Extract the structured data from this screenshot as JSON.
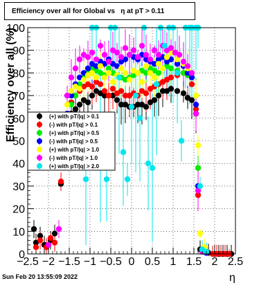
{
  "chart_data": {
    "type": "scatter",
    "title": "Efficiency over all for Global vs   η at pT > 0.11",
    "xlabel": "η",
    "ylabel": "Efficiency over all (%)",
    "xlim": [
      -2.5,
      2.5
    ],
    "ylim": [
      0,
      100
    ],
    "x_ticks": [
      -2.5,
      -2,
      -1.5,
      -1,
      -0.5,
      0,
      0.5,
      1,
      1.5,
      2,
      2.5
    ],
    "x_tick_labels": [
      "−2.5",
      "−2",
      "−1.5",
      "−1",
      "−0.5",
      "0",
      "0.5",
      "1",
      "1.5",
      "2",
      "2.5"
    ],
    "y_ticks": [
      0,
      10,
      20,
      30,
      40,
      50,
      60,
      70,
      80,
      90,
      100
    ],
    "y_tick_labels": [
      "0",
      "10",
      "20",
      "30",
      "40",
      "50",
      "60",
      "70",
      "80",
      "90",
      "100"
    ],
    "grid": true,
    "legend_placement": "middle-left",
    "series": [
      {
        "name": "(+) with pT/|q| > 0.1",
        "color": "#000000",
        "points": [
          [
            -2.35,
            11
          ],
          [
            -2.3,
            5
          ],
          [
            -2.2,
            8
          ],
          [
            -2.1,
            4
          ],
          [
            -1.95,
            6
          ],
          [
            -1.85,
            9
          ],
          [
            -1.7,
            31
          ],
          [
            -1.55,
            58
          ],
          [
            -1.45,
            62
          ],
          [
            -1.35,
            64
          ],
          [
            -1.25,
            66
          ],
          [
            -1.15,
            68
          ],
          [
            -1.05,
            67
          ],
          [
            -0.95,
            70
          ],
          [
            -0.85,
            72
          ],
          [
            -0.75,
            71
          ],
          [
            -0.65,
            70
          ],
          [
            -0.55,
            70
          ],
          [
            -0.45,
            70
          ],
          [
            -0.35,
            68
          ],
          [
            -0.25,
            66
          ],
          [
            -0.15,
            66
          ],
          [
            -0.05,
            65
          ],
          [
            0.05,
            65
          ],
          [
            0.15,
            66
          ],
          [
            0.25,
            66
          ],
          [
            0.35,
            65
          ],
          [
            0.45,
            67
          ],
          [
            0.55,
            68
          ],
          [
            0.65,
            70
          ],
          [
            0.75,
            72
          ],
          [
            0.85,
            72
          ],
          [
            0.95,
            73
          ],
          [
            1.1,
            72
          ],
          [
            1.25,
            71
          ],
          [
            1.35,
            69
          ],
          [
            1.45,
            68
          ],
          [
            1.55,
            62
          ],
          [
            1.65,
            2
          ],
          [
            1.75,
            1
          ],
          [
            1.85,
            0.5
          ],
          [
            2.0,
            0
          ],
          [
            2.1,
            0
          ],
          [
            2.2,
            0
          ],
          [
            2.3,
            0
          ],
          [
            2.4,
            0
          ]
        ]
      },
      {
        "name": "(-) with pT/|q| > 0.1",
        "color": "#ff0000",
        "points": [
          [
            -2.3,
            3
          ],
          [
            -2.2,
            6
          ],
          [
            -2.05,
            3
          ],
          [
            -1.95,
            7
          ],
          [
            -1.85,
            5
          ],
          [
            -1.7,
            32
          ],
          [
            -1.55,
            62
          ],
          [
            -1.45,
            67
          ],
          [
            -1.35,
            70
          ],
          [
            -1.25,
            72
          ],
          [
            -1.15,
            74
          ],
          [
            -1.05,
            75
          ],
          [
            -0.95,
            74
          ],
          [
            -0.85,
            76
          ],
          [
            -0.75,
            75
          ],
          [
            -0.65,
            72
          ],
          [
            -0.55,
            70
          ],
          [
            -0.45,
            73
          ],
          [
            -0.35,
            71
          ],
          [
            -0.25,
            72
          ],
          [
            -0.15,
            70
          ],
          [
            -0.05,
            70
          ],
          [
            0.05,
            71
          ],
          [
            0.15,
            70
          ],
          [
            0.25,
            72
          ],
          [
            0.35,
            71
          ],
          [
            0.45,
            73
          ],
          [
            0.55,
            74
          ],
          [
            0.65,
            75
          ],
          [
            0.75,
            76
          ],
          [
            0.85,
            77
          ],
          [
            0.95,
            78
          ],
          [
            1.1,
            79
          ],
          [
            1.25,
            80
          ],
          [
            1.35,
            79
          ],
          [
            1.45,
            75
          ],
          [
            1.55,
            64
          ],
          [
            1.6,
            26
          ],
          [
            1.7,
            1
          ],
          [
            1.8,
            0.5
          ],
          [
            1.95,
            0
          ],
          [
            2.05,
            0
          ],
          [
            2.15,
            0
          ],
          [
            2.25,
            0
          ],
          [
            2.35,
            0
          ]
        ]
      },
      {
        "name": "(+) with pT/|q| > 0.5",
        "color": "#00ee00",
        "points": [
          [
            -1.55,
            60
          ],
          [
            -1.45,
            66
          ],
          [
            -1.35,
            70
          ],
          [
            -1.25,
            75
          ],
          [
            -1.15,
            78
          ],
          [
            -1.05,
            80
          ],
          [
            -0.95,
            82
          ],
          [
            -0.85,
            81
          ],
          [
            -0.75,
            80
          ],
          [
            -0.65,
            79
          ],
          [
            -0.55,
            82
          ],
          [
            -0.45,
            80
          ],
          [
            -0.35,
            79
          ],
          [
            -0.25,
            78
          ],
          [
            -0.15,
            77
          ],
          [
            -0.05,
            78
          ],
          [
            0.05,
            79
          ],
          [
            0.15,
            80
          ],
          [
            0.25,
            81
          ],
          [
            0.35,
            80
          ],
          [
            0.45,
            82
          ],
          [
            0.55,
            81
          ],
          [
            0.65,
            80
          ],
          [
            0.75,
            82
          ],
          [
            0.85,
            83
          ],
          [
            0.95,
            82
          ],
          [
            1.1,
            81
          ],
          [
            1.25,
            80
          ],
          [
            1.35,
            79
          ],
          [
            1.45,
            78
          ],
          [
            1.55,
            70
          ],
          [
            1.6,
            38
          ],
          [
            1.7,
            2
          ],
          [
            1.8,
            1
          ]
        ]
      },
      {
        "name": "(-) with pT/|q| > 0.5",
        "color": "#0000ff",
        "points": [
          [
            -1.55,
            62
          ],
          [
            -1.45,
            70
          ],
          [
            -1.35,
            75
          ],
          [
            -1.25,
            78
          ],
          [
            -1.15,
            80
          ],
          [
            -1.05,
            82
          ],
          [
            -0.95,
            84
          ],
          [
            -0.85,
            83
          ],
          [
            -0.75,
            85
          ],
          [
            -0.65,
            84
          ],
          [
            -0.55,
            86
          ],
          [
            -0.45,
            84
          ],
          [
            -0.35,
            83
          ],
          [
            -0.25,
            85
          ],
          [
            -0.15,
            86
          ],
          [
            -0.05,
            88
          ],
          [
            0.05,
            87
          ],
          [
            0.15,
            86
          ],
          [
            0.25,
            88
          ],
          [
            0.35,
            86
          ],
          [
            0.45,
            85
          ],
          [
            0.55,
            84
          ],
          [
            0.65,
            86
          ],
          [
            0.75,
            87
          ],
          [
            0.85,
            85
          ],
          [
            0.95,
            86
          ],
          [
            1.1,
            84
          ],
          [
            1.25,
            83
          ],
          [
            1.35,
            80
          ],
          [
            1.45,
            78
          ],
          [
            1.55,
            66
          ],
          [
            1.6,
            30
          ],
          [
            1.7,
            1
          ],
          [
            1.8,
            0.5
          ]
        ]
      },
      {
        "name": "(+) with pT/|q| > 1.0",
        "color": "#ffff00",
        "points": [
          [
            -1.55,
            66
          ],
          [
            -1.45,
            72
          ],
          [
            -1.35,
            74
          ],
          [
            -1.25,
            73
          ],
          [
            -1.15,
            77
          ],
          [
            -1.05,
            79
          ],
          [
            -0.95,
            80
          ],
          [
            -0.85,
            78
          ],
          [
            -0.75,
            83
          ],
          [
            -0.65,
            78
          ],
          [
            -0.55,
            80
          ],
          [
            -0.45,
            76
          ],
          [
            -0.35,
            79
          ],
          [
            -0.25,
            82
          ],
          [
            -0.15,
            80
          ],
          [
            -0.05,
            77
          ],
          [
            0.05,
            81
          ],
          [
            0.15,
            80
          ],
          [
            0.25,
            76
          ],
          [
            0.35,
            83
          ],
          [
            0.45,
            80
          ],
          [
            0.55,
            78
          ],
          [
            0.65,
            84
          ],
          [
            0.75,
            82
          ],
          [
            0.85,
            87
          ],
          [
            0.95,
            89
          ],
          [
            1.1,
            86
          ],
          [
            1.25,
            84
          ],
          [
            1.35,
            82
          ],
          [
            1.45,
            80
          ],
          [
            1.55,
            70
          ],
          [
            1.6,
            48
          ],
          [
            1.65,
            9
          ],
          [
            1.75,
            3
          ]
        ]
      },
      {
        "name": "(-) with pT/|q| > 1.0",
        "color": "#ff00ff",
        "points": [
          [
            -2.0,
            4
          ],
          [
            -1.75,
            11
          ],
          [
            -1.55,
            70
          ],
          [
            -1.45,
            78
          ],
          [
            -1.35,
            82
          ],
          [
            -1.25,
            86
          ],
          [
            -1.15,
            88
          ],
          [
            -1.05,
            87
          ],
          [
            -0.95,
            89
          ],
          [
            -0.85,
            86
          ],
          [
            -0.75,
            92
          ],
          [
            -0.65,
            88
          ],
          [
            -0.55,
            85
          ],
          [
            -0.45,
            90
          ],
          [
            -0.35,
            89
          ],
          [
            -0.25,
            87
          ],
          [
            -0.15,
            91
          ],
          [
            -0.05,
            88
          ],
          [
            0.05,
            90
          ],
          [
            0.15,
            87
          ],
          [
            0.25,
            92
          ],
          [
            0.35,
            88
          ],
          [
            0.45,
            86
          ],
          [
            0.55,
            90
          ],
          [
            0.65,
            88
          ],
          [
            0.75,
            92
          ],
          [
            0.85,
            90
          ],
          [
            0.95,
            91
          ],
          [
            1.05,
            89
          ],
          [
            1.15,
            88
          ],
          [
            1.25,
            85
          ],
          [
            1.35,
            83
          ],
          [
            1.45,
            80
          ],
          [
            1.55,
            62
          ],
          [
            1.6,
            28
          ],
          [
            1.7,
            1
          ]
        ]
      },
      {
        "name": "(+) with pT/|q| > 2.0",
        "color": "#00e5ee",
        "points": [
          [
            -1.1,
            33
          ],
          [
            -0.95,
            100
          ],
          [
            -0.85,
            100
          ],
          [
            -0.75,
            48
          ],
          [
            -0.6,
            33
          ],
          [
            -0.5,
            100
          ],
          [
            -0.4,
            100
          ],
          [
            -0.3,
            78
          ],
          [
            -0.2,
            45
          ],
          [
            -0.1,
            33
          ],
          [
            0.0,
            65
          ],
          [
            0.1,
            70
          ],
          [
            0.2,
            60
          ],
          [
            0.3,
            100
          ],
          [
            0.4,
            40
          ],
          [
            0.5,
            38
          ],
          [
            0.6,
            75
          ],
          [
            0.7,
            100
          ],
          [
            0.8,
            92
          ],
          [
            0.9,
            100
          ],
          [
            1.0,
            100
          ],
          [
            1.1,
            80
          ],
          [
            1.2,
            50
          ],
          [
            1.3,
            100
          ],
          [
            1.4,
            100
          ],
          [
            1.45,
            100
          ],
          [
            1.55,
            100
          ],
          [
            1.6,
            100
          ],
          [
            1.65,
            30
          ],
          [
            1.7,
            2
          ],
          [
            1.8,
            1
          ]
        ]
      }
    ],
    "legend_entries": [
      "(+) with pT/|q| > 0.1",
      "(-) with pT/|q| > 0.1",
      "(+) with pT/|q| > 0.5",
      "(-) with pT/|q| > 0.5",
      "(+) with pT/|q| > 1.0",
      "(-) with pT/|q| > 1.0",
      "(+) with pT/|q| > 2.0"
    ]
  },
  "footer": {
    "timestamp": "Sun Feb 20 13:55:09 2022"
  }
}
